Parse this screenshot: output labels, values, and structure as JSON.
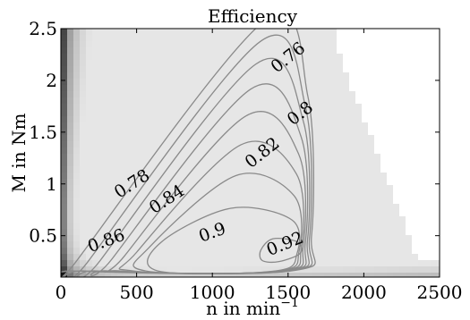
{
  "chart_data": {
    "type": "heatmap",
    "title": "Efficiency",
    "xlabel": "n in min",
    "xlabel_sup": "−1",
    "ylabel": "M in Nm",
    "xlim": [
      0,
      2500
    ],
    "ylim": [
      0.1,
      2.5
    ],
    "xticks": [
      0,
      500,
      1000,
      1500,
      2000,
      2500
    ],
    "xtick_labels": [
      "0",
      "500",
      "1000",
      "1500",
      "2000",
      "2500"
    ],
    "yticks": [
      0.5,
      1,
      1.5,
      2,
      2.5
    ],
    "ytick_labels": [
      "0.5",
      "1",
      "1.5",
      "2",
      "2.5"
    ],
    "colormap": "grayscale",
    "contour_levels": [
      {
        "level": 0.76,
        "label": "0.76",
        "label_at": [
          1500,
          2.22
        ],
        "angle": -38
      },
      {
        "level": 0.78,
        "label": "0.78",
        "label_at": [
          470,
          1.0
        ],
        "angle": -33
      },
      {
        "level": 0.8,
        "label": "0.8",
        "label_at": [
          1580,
          1.68
        ],
        "angle": -38
      },
      {
        "level": 0.82,
        "label": "0.82",
        "label_at": [
          1330,
          1.3
        ],
        "angle": -38
      },
      {
        "level": 0.84,
        "label": "0.84",
        "label_at": [
          700,
          0.85
        ],
        "angle": -33
      },
      {
        "level": 0.86,
        "label": "0.86",
        "label_at": [
          300,
          0.45
        ],
        "angle": -20
      },
      {
        "level": 0.88,
        "label": "",
        "label_at": null,
        "angle": 0
      },
      {
        "level": 0.9,
        "label": "0.9",
        "label_at": [
          1000,
          0.53
        ],
        "angle": -20
      },
      {
        "level": 0.92,
        "label": "0.92",
        "label_at": [
          1480,
          0.42
        ],
        "angle": -22
      }
    ],
    "grid": false,
    "legend": "none"
  }
}
